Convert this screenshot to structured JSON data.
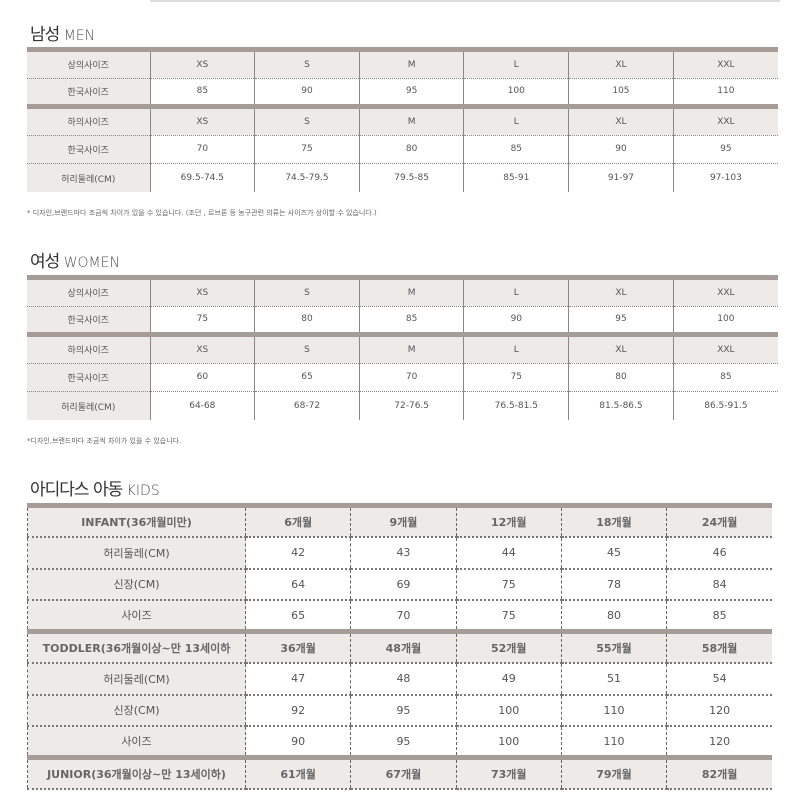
{
  "men": {
    "title_ko": "남성",
    "title_en": "MEN",
    "rows": [
      [
        "상의사이즈",
        "XS",
        "S",
        "M",
        "L",
        "XL",
        "XXL"
      ],
      [
        "한국사이즈",
        "85",
        "90",
        "95",
        "100",
        "105",
        "110"
      ],
      [
        "하의사이즈",
        "XS",
        "S",
        "M",
        "L",
        "XL",
        "XXL"
      ],
      [
        "한국사이즈",
        "70",
        "75",
        "80",
        "85",
        "90",
        "95"
      ],
      [
        "허리둘레(CM)",
        "69.5-74.5",
        "74.5-79.5",
        "79.5-85",
        "85-91",
        "91-97",
        "97-103"
      ]
    ],
    "note": "* 디자인,브랜드마다 조금씩 차이가 있을 수 있습니다. (조던 , 르브론 등 농구관련 의류는 사이즈가 상이할 수 있습니다.)"
  },
  "women": {
    "title_ko": "여성",
    "title_en": "WOMEN",
    "rows": [
      [
        "상의사이즈",
        "XS",
        "S",
        "M",
        "L",
        "XL",
        "XXL"
      ],
      [
        "한국사이즈",
        "75",
        "80",
        "85",
        "90",
        "95",
        "100"
      ],
      [
        "하의사이즈",
        "XS",
        "S",
        "M",
        "L",
        "XL",
        "XXL"
      ],
      [
        "한국사이즈",
        "60",
        "65",
        "70",
        "75",
        "80",
        "85"
      ],
      [
        "허리둘레(CM)",
        "64-68",
        "68-72",
        "72-76.5",
        "76.5-81.5",
        "81.5-86.5",
        "86.5-91.5"
      ]
    ],
    "note": "*디자인,브랜드마다 조금씩 차이가 있을 수 있습니다."
  },
  "kids": {
    "title_ko": "아디다스 아동",
    "title_en": "KIDS",
    "rows": [
      [
        "INFANT(36개월미만)",
        "6개월",
        "9개월",
        "12개월",
        "18개월",
        "24개월"
      ],
      [
        "허리둘레(CM)",
        "42",
        "43",
        "44",
        "45",
        "46"
      ],
      [
        "신장(CM)",
        "64",
        "69",
        "75",
        "78",
        "84"
      ],
      [
        "사이즈",
        "65",
        "70",
        "75",
        "80",
        "85"
      ],
      [
        "TODDLER(36개월이상~만 13세이하",
        "36개월",
        "48개월",
        "52개월",
        "55개월",
        "58개월"
      ],
      [
        "허리둘레(CM)",
        "47",
        "48",
        "49",
        "51",
        "54"
      ],
      [
        "신장(CM)",
        "92",
        "95",
        "100",
        "110",
        "120"
      ],
      [
        "사이즈",
        "90",
        "95",
        "100",
        "110",
        "120"
      ],
      [
        "JUNIOR(36개월이상~만 13세이하)",
        "61개월",
        "67개월",
        "73개월",
        "79개월",
        "82개월"
      ]
    ]
  }
}
